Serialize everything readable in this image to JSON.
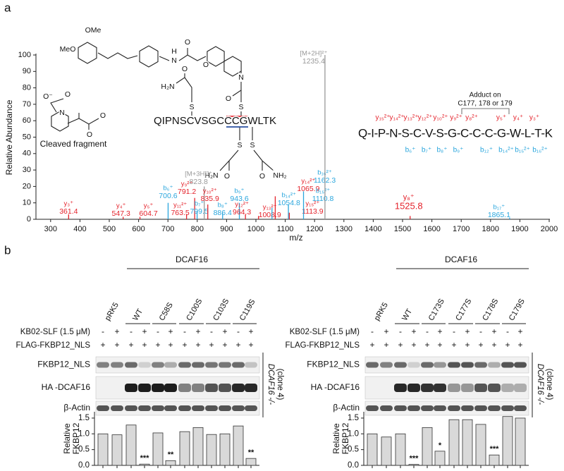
{
  "panel_labels": [
    "a",
    "b"
  ],
  "structure": {
    "labels": [
      "OMe",
      "MeO",
      "H",
      "N",
      "O",
      "O",
      "N",
      "O",
      "S",
      "H₂N",
      "O",
      "S",
      "QIPNSCVSGCCCGWLTK",
      "S",
      "S",
      "H₂N",
      "O",
      "O",
      "NH₂",
      "O⁻",
      "O",
      "N",
      "O",
      "O",
      "Cleaved fragment"
    ]
  },
  "sequence": {
    "peptide": "Q-I-P-N-S-C-V-S-G-C-C-C-G-W-L-T-K",
    "adduct": [
      "Adduct on",
      "C177, 178 or 179"
    ],
    "y_ions": [
      "y₁₅²⁺",
      "y₁₄²⁺",
      "y₁₃²⁺",
      "y₁₂²⁺",
      "y₁₀²⁺",
      "y₉²⁺",
      "y₈²⁺",
      "y₅⁺",
      "y₄⁺",
      "y₃⁺"
    ],
    "b_ions": [
      "b₆⁺",
      "b₇⁺",
      "b₈⁺",
      "b₉⁺",
      "b₁₂⁺",
      "b₁₄²⁺",
      "b₁₅²⁺",
      "b₁₆²⁺"
    ]
  },
  "chart_data": [
    {
      "type": "spectrum",
      "ylabel": "Relative Abundance",
      "xlabel": "m/z",
      "xlim": [
        250,
        2000
      ],
      "xticks": [
        300,
        400,
        500,
        600,
        700,
        800,
        900,
        1000,
        1100,
        1200,
        1300,
        1400,
        1500,
        1600,
        1700,
        1800,
        1900,
        2000
      ],
      "ylim": [
        0,
        100
      ],
      "yticks": [
        0,
        10,
        20,
        30,
        40,
        50,
        60,
        70,
        80,
        90,
        100
      ],
      "peaks": [
        {
          "x": 361.4,
          "value": 3,
          "ion": "y₃⁺",
          "color": "#e4222b"
        },
        {
          "x": 547.3,
          "value": 1.5,
          "ion": "y₄⁺",
          "color": "#e4222b"
        },
        {
          "x": 604.7,
          "value": 1.5,
          "ion": "y₅⁺",
          "color": "#e4222b"
        },
        {
          "x": 700.6,
          "value": 10,
          "ion": "b₆⁺",
          "color": "#2aa6dd"
        },
        {
          "x": 763.5,
          "value": 3,
          "ion": "y₁₁²⁺",
          "color": "#e4222b"
        },
        {
          "x": 791.2,
          "value": 13,
          "ion": "y₉²⁺",
          "color": "#e4222b"
        },
        {
          "x": 799.5,
          "value": 5,
          "ion": "b₇⁺",
          "color": "#2aa6dd"
        },
        {
          "x": 823.8,
          "value": 20,
          "ion": "[M+3H]³⁺",
          "color": "#999999"
        },
        {
          "x": 835.9,
          "value": 9,
          "ion": "y₁₀²⁺",
          "color": "#e4222b"
        },
        {
          "x": 886.4,
          "value": 4,
          "ion": "b₈⁺",
          "color": "#2aa6dd"
        },
        {
          "x": 943.6,
          "value": 10,
          "ion": "b₉⁺",
          "color": "#2aa6dd"
        },
        {
          "x": 964.3,
          "value": 3,
          "ion": "y₁₂²⁺",
          "color": "#e4222b"
        },
        {
          "x": 1008.9,
          "value": 2,
          "ion": "y₁₃²⁺",
          "color": "#e4222b"
        },
        {
          "x": 1054.8,
          "value": 7,
          "ion": "b₁₄²⁺",
          "color": "#2aa6dd"
        },
        {
          "x": 1065.9,
          "value": 14,
          "ion": "y₁₄²⁺",
          "color": "#e4222b"
        },
        {
          "x": 1110.8,
          "value": 9,
          "ion": "b₁₅²⁺",
          "color": "#2aa6dd"
        },
        {
          "x": 1113.9,
          "value": 4,
          "ion": "y₁₅²⁺",
          "color": "#e4222b"
        },
        {
          "x": 1162.3,
          "value": 17,
          "ion": "b₁₆²⁺",
          "color": "#2aa6dd"
        },
        {
          "x": 1235.4,
          "value": 100,
          "ion": "[M+2H]²⁺",
          "color": "#999999"
        },
        {
          "x": 1525.8,
          "value": 2,
          "ion": "y₈⁺",
          "color": "#e4222b"
        },
        {
          "x": 1865.1,
          "value": 1,
          "ion": "b₁₇⁺",
          "color": "#2aa6dd"
        }
      ]
    },
    {
      "type": "bar",
      "ylabel": [
        "Relative",
        "FKBP12"
      ],
      "values": [
        1.0,
        0.97,
        1.28,
        0.04,
        1.03,
        0.15,
        1.07,
        1.2,
        0.98,
        1.0,
        1.25,
        0.22
      ],
      "significance": [
        null,
        null,
        null,
        "***",
        null,
        "**",
        null,
        null,
        null,
        null,
        null,
        "**"
      ],
      "color": "#d9d9d9",
      "ylim": [
        0,
        1.7
      ],
      "yticks": [
        {
          "value": 0,
          "label": "0.0"
        },
        0.5,
        {
          "value": 1,
          "label": "1.0"
        },
        1.5
      ]
    },
    {
      "type": "bar",
      "ylabel": [
        "Relative",
        "FKBP12"
      ],
      "values": [
        1.0,
        0.9,
        1.0,
        0.03,
        1.2,
        0.45,
        1.45,
        1.45,
        1.3,
        0.33,
        1.55,
        1.5
      ],
      "significance": [
        null,
        null,
        null,
        "***",
        null,
        "*",
        null,
        null,
        null,
        "***",
        null,
        null
      ],
      "color": "#d9d9d9",
      "ylim": [
        0,
        1.7
      ],
      "yticks": [
        {
          "value": 0,
          "label": "0.0"
        },
        0.5,
        {
          "value": 1,
          "label": "1.0"
        },
        1.5
      ]
    }
  ],
  "blots": [
    {
      "group": "DCAF16",
      "lanes": [
        "pRK5",
        "WT",
        "C58S",
        "C100S",
        "C103S",
        "C119S"
      ],
      "treatments": [
        {
          "label": "KB02-SLF (1.5 μM)",
          "signs": [
            "-",
            "+",
            "-",
            "+",
            "-",
            "+",
            "-",
            "+",
            "-",
            "+",
            "-",
            "+"
          ]
        },
        {
          "label": "FLAG-FKBP12_NLS",
          "signs": [
            "+",
            "+",
            "+",
            "+",
            "+",
            "+",
            "+",
            "+",
            "+",
            "+",
            "+",
            "+"
          ]
        }
      ],
      "rows": [
        "FKBP12_NLS",
        "HA -DCAF16",
        "β-Actin"
      ],
      "cell_line": "DCAF16 -/-",
      "clone": "(clone 4)"
    },
    {
      "group": "DCAF16",
      "lanes": [
        "pRK5",
        "WT",
        "C173S",
        "C177S",
        "C178S",
        "C179S"
      ],
      "treatments": [
        {
          "label": "KB02-SLF (1.5 μM)",
          "signs": [
            "-",
            "+",
            "-",
            "+",
            "-",
            "+",
            "-",
            "+",
            "-",
            "+",
            "-",
            "+"
          ]
        },
        {
          "label": "FLAG-FKBP12_NLS",
          "signs": [
            "+",
            "+",
            "+",
            "+",
            "+",
            "+",
            "+",
            "+",
            "+",
            "+",
            "+",
            "+"
          ]
        }
      ],
      "rows": [
        "FKBP12_NLS",
        "HA -DCAF16",
        "β-Actin"
      ],
      "cell_line": "DCAF16 -/-",
      "clone": "(clone 4)"
    }
  ]
}
